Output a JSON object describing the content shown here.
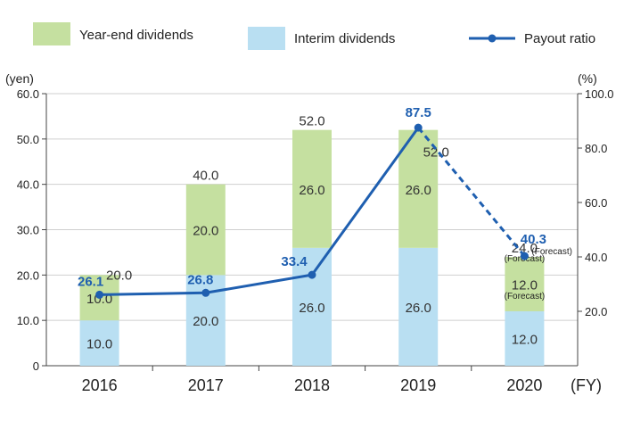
{
  "chart_data": {
    "type": "bar",
    "stacked": true,
    "categories": [
      "2016",
      "2017",
      "2018",
      "2019",
      "2020"
    ],
    "x_unit": "(FY)",
    "series": [
      {
        "name": "Interim dividends",
        "values": [
          10.0,
          20.0,
          26.0,
          26.0,
          12.0
        ],
        "color": "#b9dff2"
      },
      {
        "name": "Year-end dividends",
        "values": [
          10.0,
          20.0,
          26.0,
          26.0,
          12.0
        ],
        "color": "#c5e0a0"
      }
    ],
    "interim_labels": [
      "10.0",
      "20.0",
      "26.0",
      "26.0",
      "12.0"
    ],
    "yearend_labels": [
      "10.0",
      "20.0",
      "26.0",
      "26.0",
      "12.0"
    ],
    "totals": [
      20.0,
      40.0,
      52.0,
      52.0,
      24.0
    ],
    "total_labels": [
      "20.0",
      "40.0",
      "52.0",
      "52.0",
      "24.0"
    ],
    "line_series": {
      "name": "Payout ratio",
      "values": [
        26.1,
        26.8,
        33.4,
        87.5,
        40.3
      ],
      "labels": [
        "26.1",
        "26.8",
        "33.4",
        "87.5",
        "40.3"
      ],
      "color": "#1f5fb0",
      "dashed_last_segment": true
    },
    "forecast_note": "(Forecast)",
    "y_left": {
      "unit": "(yen)",
      "range": [
        0,
        60
      ],
      "ticks": [
        0,
        10,
        20,
        30,
        40,
        50,
        60
      ],
      "tick_labels": [
        "0",
        "10.0",
        "20.0",
        "30.0",
        "40.0",
        "50.0",
        "60.0"
      ]
    },
    "y_right": {
      "unit": "(%)",
      "range": [
        0,
        100
      ],
      "ticks": [
        20,
        40,
        60,
        80,
        100
      ],
      "tick_labels": [
        "20.0",
        "40.0",
        "60.0",
        "80.0",
        "100.0"
      ]
    },
    "grid": true,
    "legend_position": "top"
  }
}
